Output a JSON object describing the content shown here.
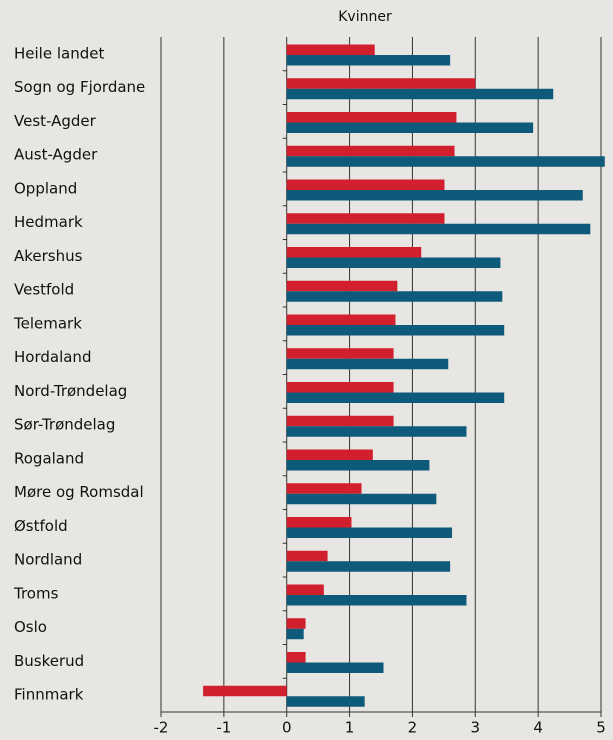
{
  "chart_data": {
    "type": "hbar",
    "title": "Kvinner",
    "categories": [
      "Heile landet",
      "Sogn og Fjordane",
      "Vest-Agder",
      "Aust-Agder",
      "Oppland",
      "Hedmark",
      "Akershus",
      "Vestfold",
      "Telemark",
      "Hordaland",
      "Nord-Trøndelag",
      "Sør-Trøndelag",
      "Rogaland",
      "Møre og Romsdal",
      "Østfold",
      "Nordland",
      "Troms",
      "Oslo",
      "Buskerud",
      "Finnmark"
    ],
    "series": [
      {
        "color": "#d11f2d",
        "values": [
          1.4,
          3.0,
          2.7,
          2.67,
          2.51,
          2.51,
          2.14,
          1.76,
          1.73,
          1.7,
          1.7,
          1.7,
          1.37,
          1.19,
          1.03,
          0.65,
          0.59,
          0.3,
          0.3,
          -1.33
        ]
      },
      {
        "color": "#0d5a7a",
        "values": [
          2.6,
          4.24,
          3.92,
          5.06,
          4.71,
          4.83,
          3.4,
          3.43,
          3.46,
          2.57,
          3.46,
          2.86,
          2.27,
          2.38,
          2.63,
          2.6,
          2.86,
          0.27,
          1.54,
          1.24
        ]
      }
    ],
    "xlim": [
      -2,
      5
    ],
    "xticks": [
      -2,
      -1,
      0,
      1,
      2,
      3,
      4,
      5
    ],
    "grid": true
  }
}
